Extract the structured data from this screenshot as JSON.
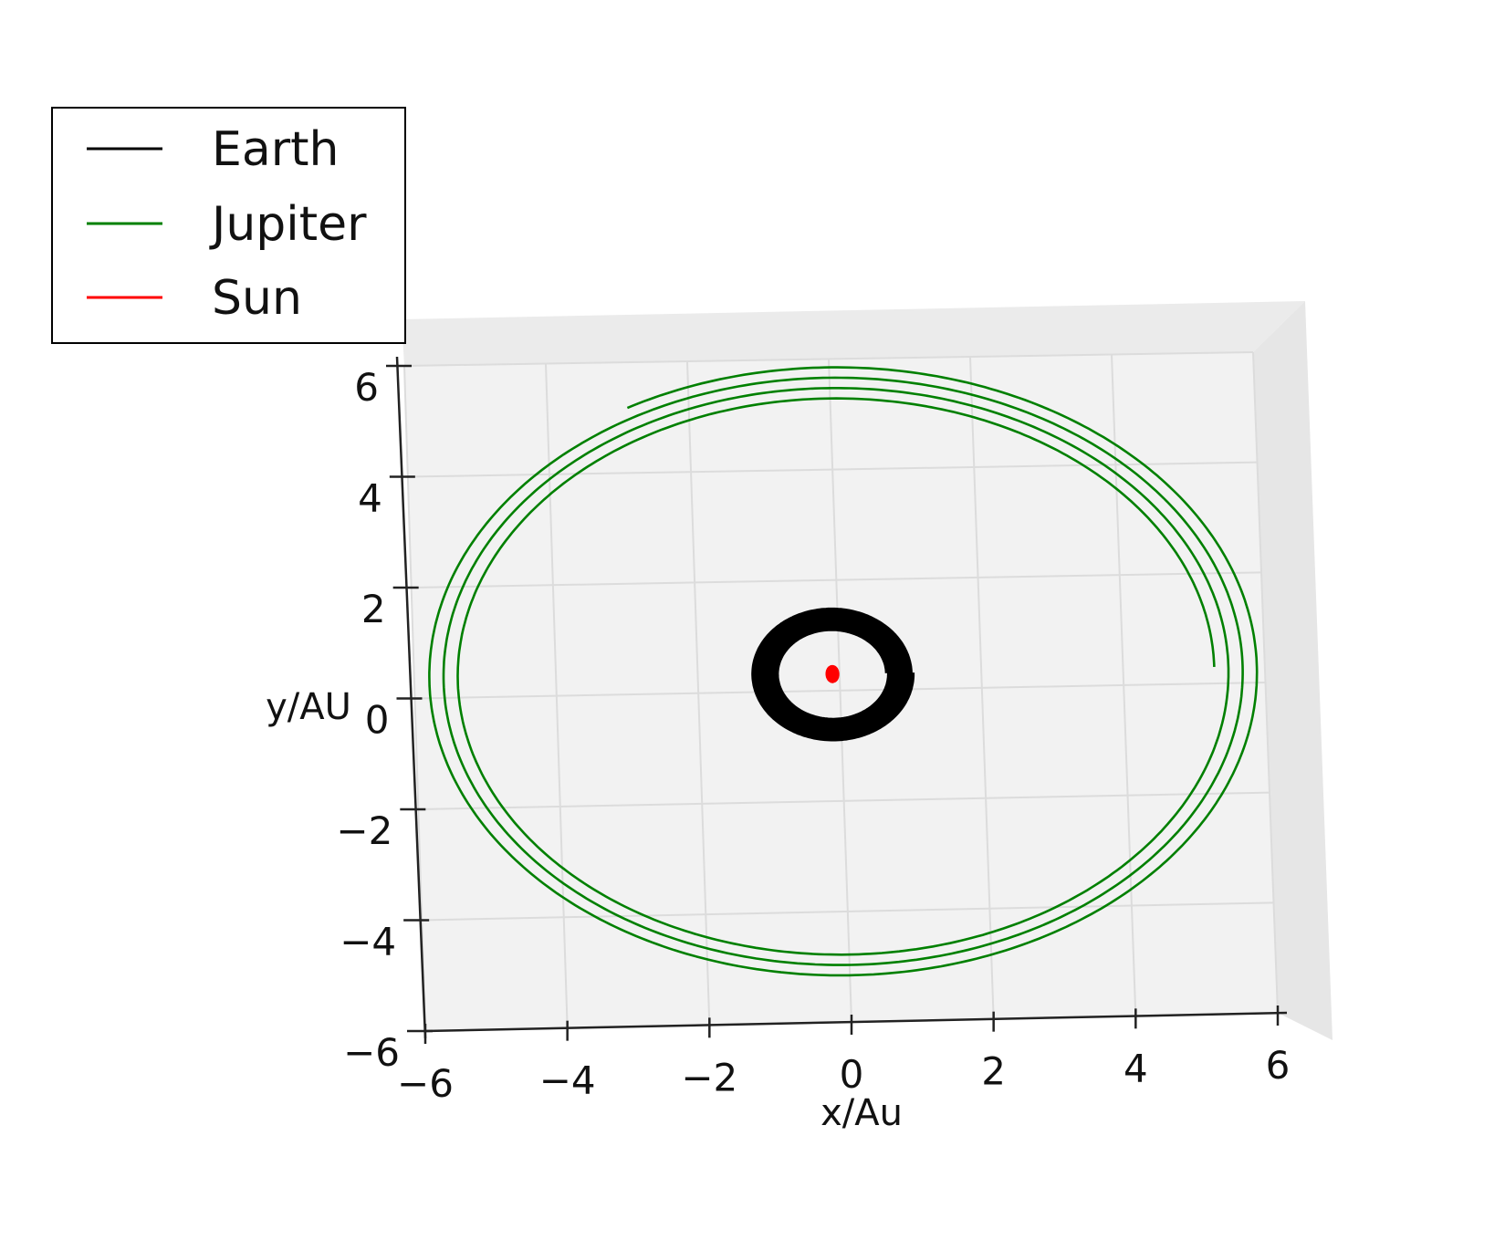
{
  "chart_data": {
    "type": "line",
    "projection": "3d",
    "xlabel": "x/Au",
    "ylabel": "y/AU",
    "xlim": [
      -6,
      6
    ],
    "ylim": [
      -6,
      6
    ],
    "x_ticks": [
      -6,
      -4,
      -2,
      0,
      2,
      4,
      6
    ],
    "y_ticks": [
      -6,
      -4,
      -2,
      0,
      2,
      4,
      6
    ],
    "grid": true,
    "legend_position": "top-left",
    "series": [
      {
        "name": "Earth",
        "color": "#000000",
        "orbit_radius": 1.0,
        "orbits": 12,
        "center": [
          -0.1,
          0.3
        ]
      },
      {
        "name": "Jupiter",
        "color": "#008000",
        "orbit_radius": 5.2,
        "orbits": 3,
        "center": [
          0.0,
          0.3
        ]
      },
      {
        "name": "Sun",
        "color": "#ff0000",
        "orbit_radius": 0.04,
        "orbits": 1,
        "center": [
          -0.1,
          0.3
        ]
      }
    ]
  }
}
